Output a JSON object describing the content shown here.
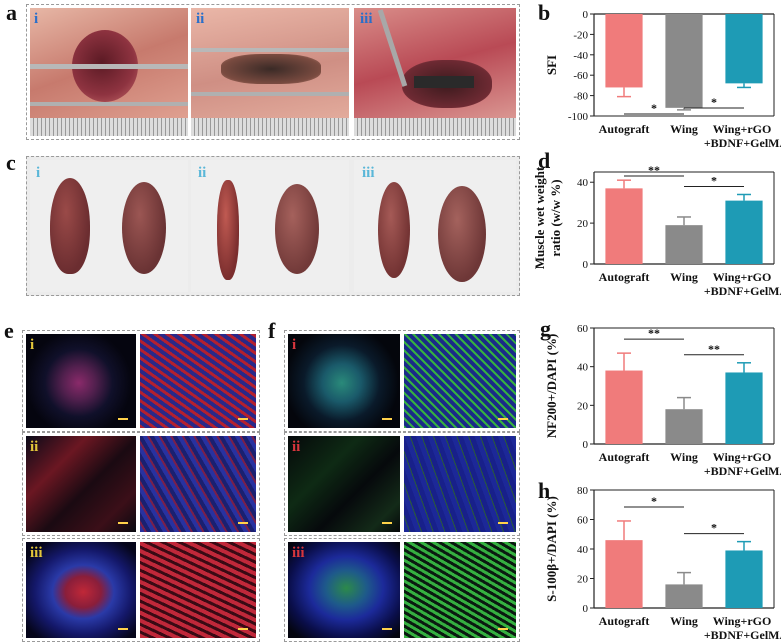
{
  "panels": {
    "a": {
      "letter": "a",
      "subs": [
        "i",
        "ii",
        "iii"
      ]
    },
    "b": {
      "letter": "b"
    },
    "c": {
      "letter": "c",
      "subs": [
        "i",
        "ii",
        "iii"
      ]
    },
    "d": {
      "letter": "d"
    },
    "e": {
      "letter": "e",
      "subs": [
        "i",
        "ii",
        "iii"
      ]
    },
    "f": {
      "letter": "f",
      "subs": [
        "i",
        "ii",
        "iii"
      ]
    },
    "g": {
      "letter": "g"
    },
    "h": {
      "letter": "h"
    }
  },
  "colors": {
    "autograft": "#f07b7b",
    "wing": "#8a8a8a",
    "wing_rgo": "#1e9bb5",
    "roman_blue": "#2a6fc9",
    "roman_light_blue": "#5ab7d8",
    "roman_yellow": "#e3c63a",
    "roman_red": "#d8363d",
    "tissue": "#7a2e2e",
    "fluor_red": "#c0283a",
    "fluor_blue": "#2835a8",
    "fluor_green": "#35b040"
  },
  "chart_data": [
    {
      "id": "b",
      "type": "bar",
      "ylabel": "SFI",
      "categories": [
        "Autograft",
        "Wing",
        "Wing+rGO\n+BDNF+GelMA"
      ],
      "values": [
        -72,
        -92,
        -68
      ],
      "errors": [
        9,
        2,
        4
      ],
      "ylim": [
        -100,
        0
      ],
      "yticks": [
        0,
        -20,
        -40,
        -60,
        -80,
        -100
      ],
      "significance": [
        {
          "from": 0,
          "to": 1,
          "label": "*"
        },
        {
          "from": 1,
          "to": 2,
          "label": "*"
        }
      ]
    },
    {
      "id": "d",
      "type": "bar",
      "ylabel": "Muscle wet weight ratio (w/w %)",
      "categories": [
        "Autograft",
        "Wing",
        "Wing+rGO\n+BDNF+GelMA"
      ],
      "values": [
        37,
        19,
        31
      ],
      "errors": [
        4,
        4,
        3
      ],
      "ylim": [
        0,
        45
      ],
      "yticks": [
        0,
        20,
        40
      ],
      "significance": [
        {
          "from": 0,
          "to": 1,
          "label": "**"
        },
        {
          "from": 1,
          "to": 2,
          "label": "*"
        }
      ]
    },
    {
      "id": "g",
      "type": "bar",
      "ylabel": "NF200+/DAPI (%)",
      "categories": [
        "Autograft",
        "Wing",
        "Wing+rGO\n+BDNF+GelMA"
      ],
      "values": [
        38,
        18,
        37
      ],
      "errors": [
        9,
        6,
        5
      ],
      "ylim": [
        0,
        60
      ],
      "yticks": [
        0,
        20,
        40,
        60
      ],
      "significance": [
        {
          "from": 0,
          "to": 1,
          "label": "**"
        },
        {
          "from": 1,
          "to": 2,
          "label": "**"
        }
      ]
    },
    {
      "id": "h",
      "type": "bar",
      "ylabel": "S-100β+/DAPI (%)",
      "categories": [
        "Autograft",
        "Wing",
        "Wing+rGO\n+BDNF+GelMA"
      ],
      "values": [
        46,
        16,
        39
      ],
      "errors": [
        13,
        8,
        6
      ],
      "ylim": [
        0,
        80
      ],
      "yticks": [
        0,
        20,
        40,
        60,
        80
      ],
      "significance": [
        {
          "from": 0,
          "to": 1,
          "label": "*"
        },
        {
          "from": 1,
          "to": 2,
          "label": "*"
        }
      ]
    }
  ]
}
